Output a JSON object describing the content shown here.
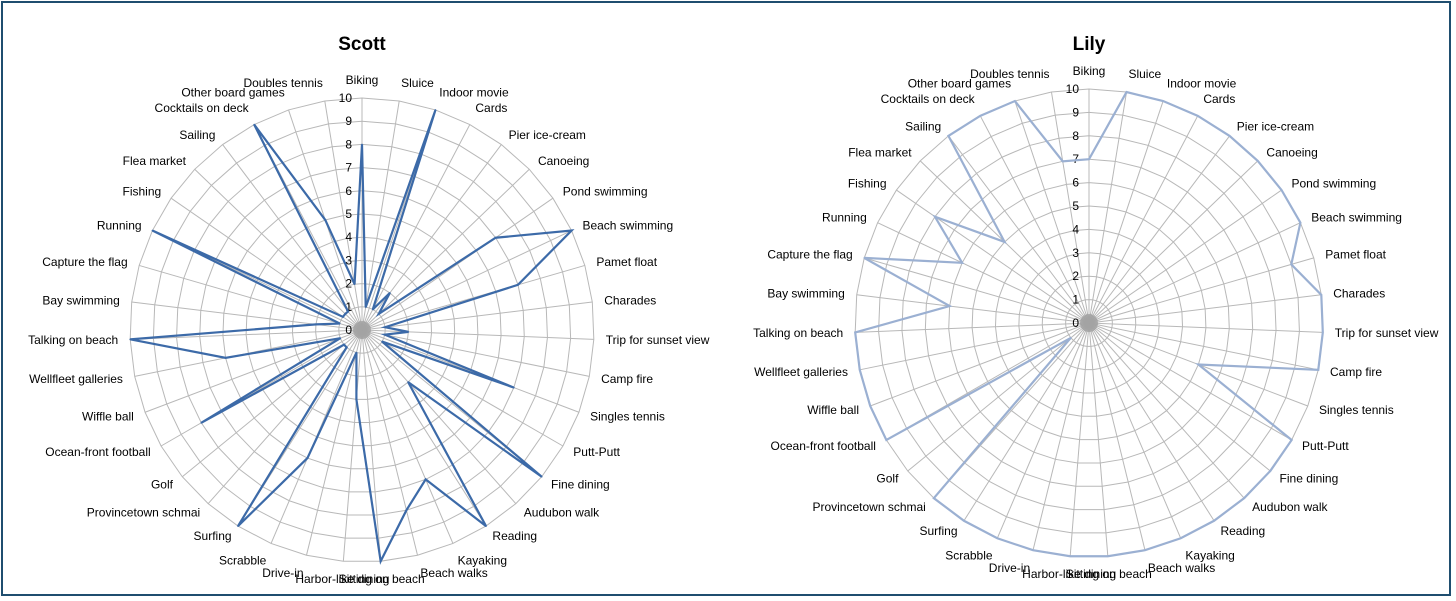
{
  "chart_data": [
    {
      "type": "radar",
      "title": "Scott",
      "rlim": [
        0,
        10
      ],
      "ticks": [
        0,
        1,
        2,
        3,
        4,
        5,
        6,
        7,
        8,
        9,
        10
      ],
      "grid": true,
      "series_color": "#3c6aa8",
      "categories": [
        "Biking",
        "Sluice",
        "Indoor movie",
        "Cards",
        "Pier ice-cream",
        "Canoeing",
        "Pond swimming",
        "Beach swimming",
        "Pamet float",
        "Charades",
        "Trip for sunset view",
        "Camp fire",
        "Singles tennis",
        "Putt-Putt",
        "Fine dining",
        "Audubon walk",
        "Reading",
        "Kayaking",
        "Beach walks",
        "Sitting on beach",
        "Harbor-like dining",
        "Drive-in",
        "Scrabble",
        "Surfing",
        "Provincetown schmai",
        "Golf",
        "Ocean-front football",
        "Wiffle ball",
        "Wellfleet galleries",
        "Talking on beach",
        "Bay swimming",
        "Capture the flag",
        "Running",
        "Fishing",
        "Flea market",
        "Sailing",
        "Cocktails on deck",
        "Other board games",
        "Doubles tennis"
      ],
      "values": [
        8,
        1,
        10,
        1,
        2,
        1,
        7,
        10,
        7,
        1,
        2,
        1,
        7,
        1,
        10,
        3,
        10,
        7,
        8,
        10,
        3,
        1,
        6,
        10,
        1,
        1,
        8,
        1,
        6,
        10,
        2,
        1,
        10,
        1,
        1,
        1,
        10,
        5,
        2
      ]
    },
    {
      "type": "radar",
      "title": "Lily",
      "rlim": [
        0,
        10
      ],
      "ticks": [
        0,
        1,
        2,
        3,
        4,
        5,
        6,
        7,
        8,
        9,
        10
      ],
      "grid": true,
      "series_color": "#9bb0d2",
      "categories": [
        "Biking",
        "Sluice",
        "Indoor movie",
        "Cards",
        "Pier ice-cream",
        "Canoeing",
        "Pond swimming",
        "Beach swimming",
        "Pamet float",
        "Charades",
        "Trip for sunset view",
        "Camp fire",
        "Singles tennis",
        "Putt-Putt",
        "Fine dining",
        "Audubon walk",
        "Reading",
        "Kayaking",
        "Beach walks",
        "Sitting on beach",
        "Harbor-like dining",
        "Drive-in",
        "Scrabble",
        "Surfing",
        "Provincetown schmai",
        "Golf",
        "Ocean-front football",
        "Wiffle ball",
        "Wellfleet galleries",
        "Talking on beach",
        "Bay swimming",
        "Capture the flag",
        "Running",
        "Fishing",
        "Flea market",
        "Sailing",
        "Cocktails on deck",
        "Other board games",
        "Doubles tennis"
      ],
      "values": [
        7,
        10,
        10,
        10,
        10,
        10,
        10,
        10,
        9,
        10,
        10,
        10,
        5,
        10,
        10,
        10,
        10,
        10,
        10,
        10,
        10,
        10,
        10,
        10,
        10,
        1,
        10,
        10,
        10,
        10,
        6,
        10,
        6,
        8,
        5,
        10,
        10,
        10,
        7
      ]
    }
  ]
}
